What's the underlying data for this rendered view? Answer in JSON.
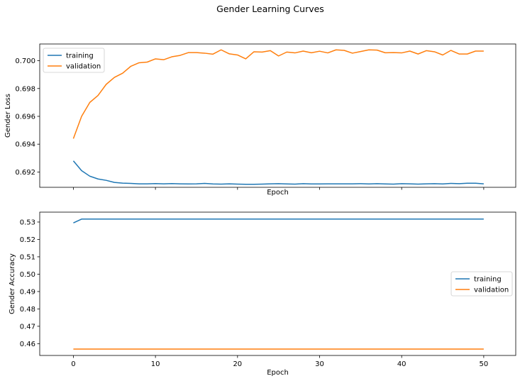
{
  "figure": {
    "title": "Gender Learning Curves"
  },
  "chart_data": [
    {
      "type": "line",
      "title": "",
      "xlabel": "Epoch",
      "ylabel": "Gender Loss",
      "show_x_tick_labels": false,
      "xlim": [
        -4.1,
        53.9
      ],
      "ylim": [
        0.6909,
        0.7012
      ],
      "x_ticks": [
        0,
        10,
        20,
        30,
        40,
        50
      ],
      "y_ticks": [
        0.692,
        0.694,
        0.696,
        0.698,
        0.7
      ],
      "y_tick_labels": [
        "0.692",
        "0.694",
        "0.696",
        "0.698",
        "0.700"
      ],
      "legend_position": "top-left",
      "grid": false,
      "series": [
        {
          "name": "training",
          "color": "#1f77b4",
          "x": [
            0,
            1,
            2,
            3,
            4,
            5,
            6,
            7,
            8,
            9,
            10,
            11,
            12,
            13,
            14,
            15,
            16,
            17,
            18,
            19,
            20,
            21,
            22,
            23,
            24,
            25,
            26,
            27,
            28,
            29,
            30,
            31,
            32,
            33,
            34,
            35,
            36,
            37,
            38,
            39,
            40,
            41,
            42,
            43,
            44,
            45,
            46,
            47,
            48,
            49,
            50
          ],
          "values": [
            0.6928,
            0.6921,
            0.6917,
            0.6915,
            0.6914,
            0.69125,
            0.6912,
            0.69118,
            0.69115,
            0.69115,
            0.69117,
            0.69115,
            0.69117,
            0.69115,
            0.69114,
            0.69115,
            0.69118,
            0.69114,
            0.69113,
            0.69115,
            0.69113,
            0.69112,
            0.69112,
            0.69113,
            0.69115,
            0.69116,
            0.69114,
            0.69113,
            0.69116,
            0.69114,
            0.69114,
            0.69115,
            0.69115,
            0.69115,
            0.69115,
            0.69116,
            0.69114,
            0.69116,
            0.69114,
            0.69113,
            0.69116,
            0.69115,
            0.69113,
            0.69115,
            0.69116,
            0.69114,
            0.69118,
            0.69116,
            0.69119,
            0.69119,
            0.69115
          ]
        },
        {
          "name": "validation",
          "color": "#ff7f0e",
          "x": [
            0,
            1,
            2,
            3,
            4,
            5,
            6,
            7,
            8,
            9,
            10,
            11,
            12,
            13,
            14,
            15,
            16,
            17,
            18,
            19,
            20,
            21,
            22,
            23,
            24,
            25,
            26,
            27,
            28,
            29,
            30,
            31,
            32,
            33,
            34,
            35,
            36,
            37,
            38,
            39,
            40,
            41,
            42,
            43,
            44,
            45,
            46,
            47,
            48,
            49,
            50
          ],
          "values": [
            0.6944,
            0.696,
            0.697,
            0.6975,
            0.6983,
            0.6988,
            0.6991,
            0.6996,
            0.69985,
            0.6999,
            0.70013,
            0.70007,
            0.70028,
            0.70038,
            0.70058,
            0.70058,
            0.70054,
            0.70047,
            0.70078,
            0.70049,
            0.70041,
            0.70013,
            0.70064,
            0.70062,
            0.70072,
            0.70034,
            0.70062,
            0.70056,
            0.70069,
            0.70057,
            0.70068,
            0.70056,
            0.70078,
            0.70074,
            0.70054,
            0.70066,
            0.70078,
            0.70076,
            0.70057,
            0.70058,
            0.70056,
            0.70069,
            0.70048,
            0.70072,
            0.70064,
            0.70041,
            0.70074,
            0.70048,
            0.70048,
            0.70069,
            0.70069
          ]
        }
      ]
    },
    {
      "type": "line",
      "title": "",
      "xlabel": "Epoch",
      "ylabel": "Gender Accuracy",
      "show_x_tick_labels": true,
      "xlim": [
        -4.1,
        53.9
      ],
      "ylim": [
        0.4532,
        0.5357
      ],
      "x_ticks": [
        0,
        10,
        20,
        30,
        40,
        50
      ],
      "x_tick_labels": [
        "0",
        "10",
        "20",
        "30",
        "40",
        "50"
      ],
      "y_ticks": [
        0.46,
        0.47,
        0.48,
        0.49,
        0.5,
        0.51,
        0.52,
        0.53
      ],
      "y_tick_labels": [
        "0.46",
        "0.47",
        "0.48",
        "0.49",
        "0.50",
        "0.51",
        "0.52",
        "0.53"
      ],
      "legend_position": "center-right",
      "grid": false,
      "series": [
        {
          "name": "training",
          "color": "#1f77b4",
          "x": [
            0,
            1,
            2,
            3,
            4,
            5,
            6,
            7,
            8,
            9,
            10,
            11,
            12,
            13,
            14,
            15,
            16,
            17,
            18,
            19,
            20,
            21,
            22,
            23,
            24,
            25,
            26,
            27,
            28,
            29,
            30,
            31,
            32,
            33,
            34,
            35,
            36,
            37,
            38,
            39,
            40,
            41,
            42,
            43,
            44,
            45,
            46,
            47,
            48,
            49,
            50
          ],
          "values": [
            0.5295,
            0.5317,
            0.5317,
            0.5317,
            0.5317,
            0.5317,
            0.5317,
            0.5317,
            0.5317,
            0.5317,
            0.5317,
            0.5317,
            0.5317,
            0.5317,
            0.5317,
            0.5317,
            0.5317,
            0.5317,
            0.5317,
            0.5317,
            0.5317,
            0.5317,
            0.5317,
            0.5317,
            0.5317,
            0.5317,
            0.5317,
            0.5317,
            0.5317,
            0.5317,
            0.5317,
            0.5317,
            0.5317,
            0.5317,
            0.5317,
            0.5317,
            0.5317,
            0.5317,
            0.5317,
            0.5317,
            0.5317,
            0.5317,
            0.5317,
            0.5317,
            0.5317,
            0.5317,
            0.5317,
            0.5317,
            0.5317,
            0.5317,
            0.5317
          ]
        },
        {
          "name": "validation",
          "color": "#ff7f0e",
          "x": [
            0,
            1,
            2,
            3,
            4,
            5,
            6,
            7,
            8,
            9,
            10,
            11,
            12,
            13,
            14,
            15,
            16,
            17,
            18,
            19,
            20,
            21,
            22,
            23,
            24,
            25,
            26,
            27,
            28,
            29,
            30,
            31,
            32,
            33,
            34,
            35,
            36,
            37,
            38,
            39,
            40,
            41,
            42,
            43,
            44,
            45,
            46,
            47,
            48,
            49,
            50
          ],
          "values": [
            0.4569,
            0.4569,
            0.4569,
            0.4569,
            0.4569,
            0.4569,
            0.4569,
            0.4569,
            0.4569,
            0.4569,
            0.4569,
            0.4569,
            0.4569,
            0.4569,
            0.4569,
            0.4569,
            0.4569,
            0.4569,
            0.4569,
            0.4569,
            0.4569,
            0.4569,
            0.4569,
            0.4569,
            0.4569,
            0.4569,
            0.4569,
            0.4569,
            0.4569,
            0.4569,
            0.4569,
            0.4569,
            0.4569,
            0.4569,
            0.4569,
            0.4569,
            0.4569,
            0.4569,
            0.4569,
            0.4569,
            0.4569,
            0.4569,
            0.4569,
            0.4569,
            0.4569,
            0.4569,
            0.4569,
            0.4569,
            0.4569,
            0.4569,
            0.4569
          ]
        }
      ]
    }
  ]
}
